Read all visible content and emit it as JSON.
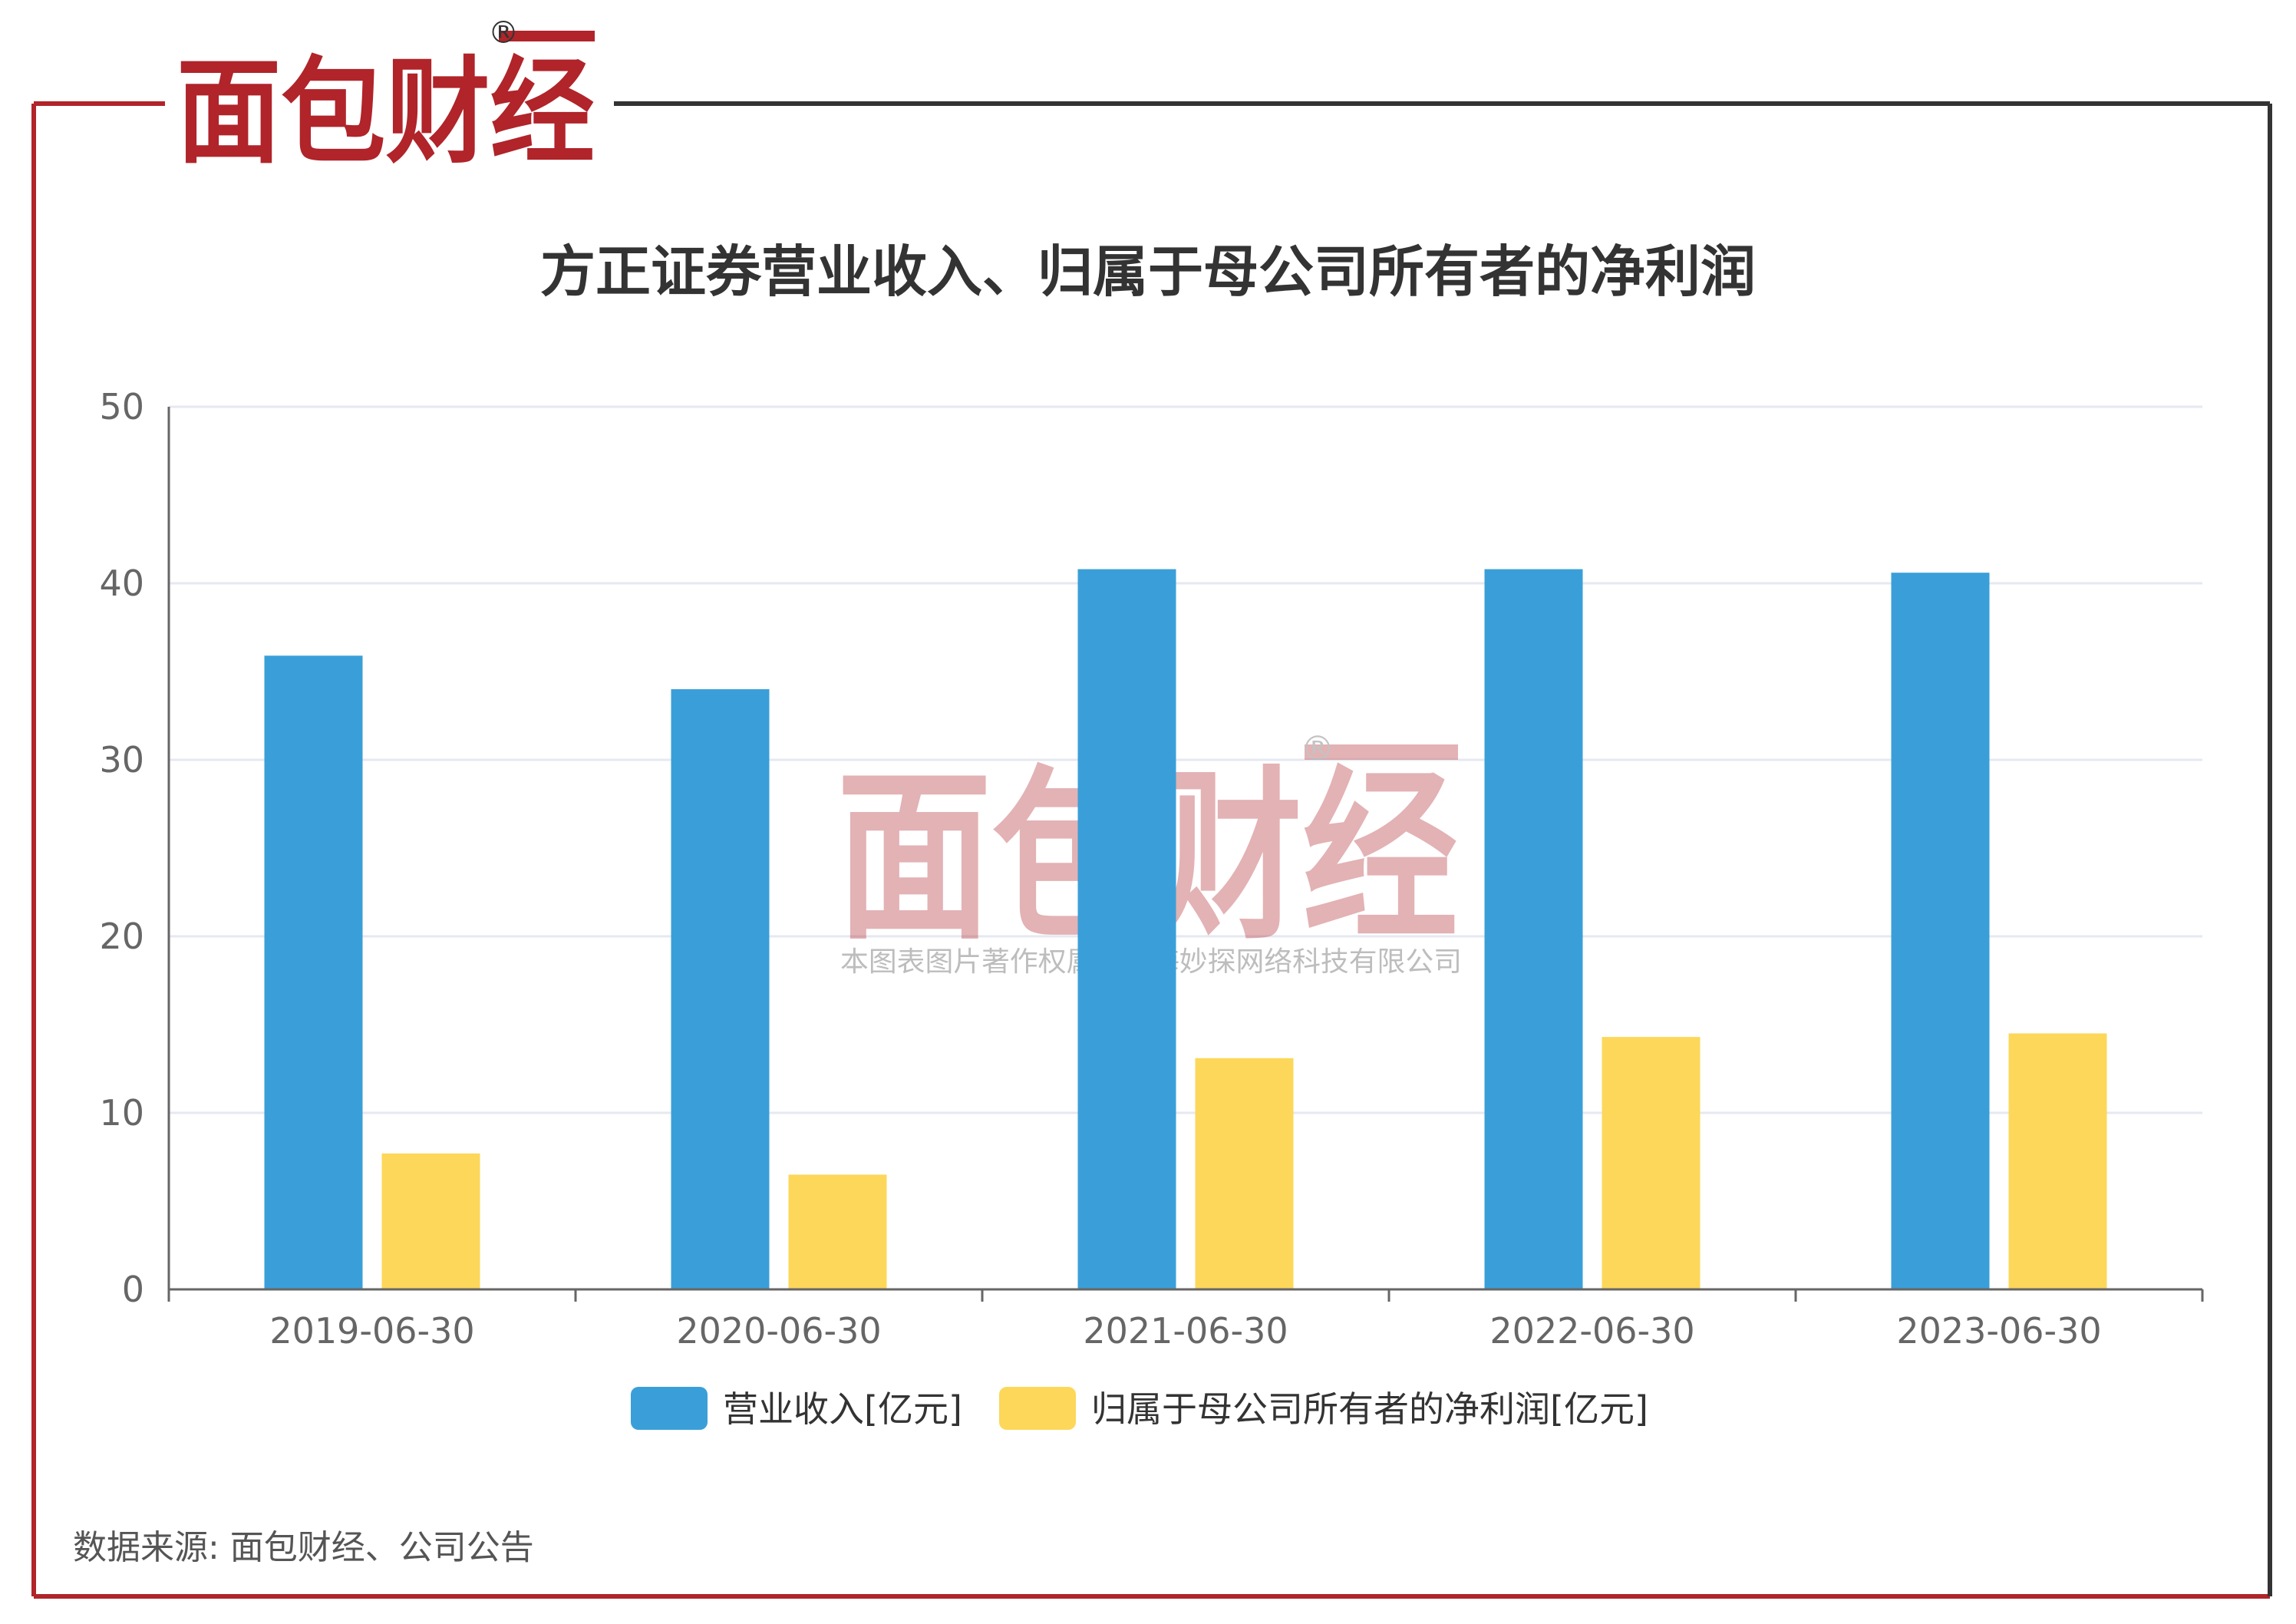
{
  "brand": {
    "logo_text": "面包财经",
    "registered_mark": "®",
    "watermark_text": "面包财经",
    "watermark_caption": "本图表图片著作权属于上海妙探网络科技有限公司"
  },
  "colors": {
    "brand_red": "#B0242A",
    "revenue": "#3A9FD8",
    "net_profit": "#FDD75A",
    "axis": "#666666",
    "grid": "#E6E8F2"
  },
  "chart_data": {
    "type": "bar",
    "title": "方正证券营业收入、归属于母公司所有者的净利润",
    "categories": [
      "2019-06-30",
      "2020-06-30",
      "2021-06-30",
      "2022-06-30",
      "2023-06-30"
    ],
    "series": [
      {
        "name": "营业收入[亿元]",
        "values": [
          35.9,
          34.0,
          40.8,
          40.8,
          40.6
        ]
      },
      {
        "name": "归属于母公司所有者的净利润[亿元]",
        "values": [
          7.7,
          6.5,
          13.1,
          14.3,
          14.5
        ]
      }
    ],
    "y_ticks": [
      "0",
      "10",
      "20",
      "30",
      "40",
      "50"
    ],
    "ylim": [
      0,
      50
    ],
    "grid": true,
    "legend_position": "bottom-center"
  },
  "source_note": "数据来源: 面包财经、公司公告"
}
